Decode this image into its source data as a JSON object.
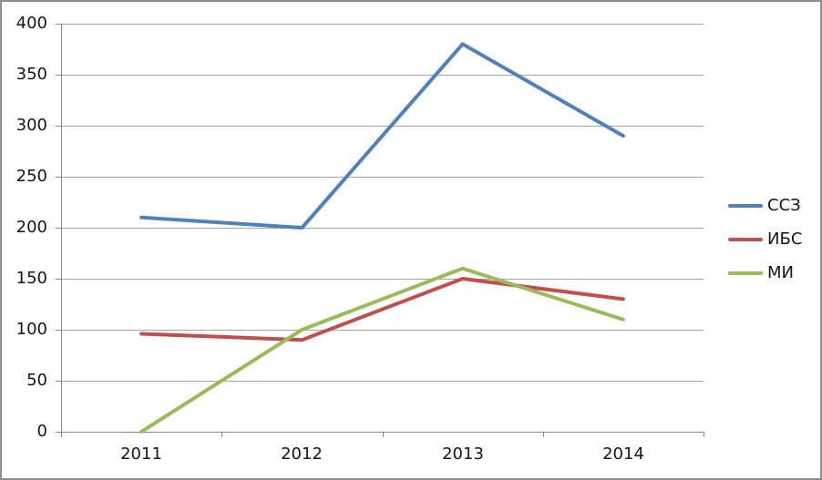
{
  "window": {
    "background": "#ffffff",
    "border_color": "#8f8f8f"
  },
  "chart_data": {
    "type": "line",
    "title": "",
    "xlabel": "",
    "ylabel": "",
    "categories": [
      "2011",
      "2012",
      "2013",
      "2014"
    ],
    "series": [
      {
        "name": "ССЗ",
        "color": "#4F81BD",
        "values": [
          210,
          200,
          380,
          290
        ]
      },
      {
        "name": "ИБС",
        "color": "#C0504D",
        "values": [
          96,
          90,
          150,
          130
        ]
      },
      {
        "name": "МИ",
        "color": "#9BBB59",
        "values": [
          0,
          100,
          160,
          110
        ]
      }
    ],
    "ylim": [
      0,
      400
    ],
    "ytick_step": 50,
    "yticks": [
      400,
      350,
      300,
      250,
      200,
      150,
      100,
      50,
      0
    ],
    "grid": "horizontal-only",
    "gridline_color": "#a6a6a6",
    "axis_color": "#898989",
    "text_color": "#161616",
    "legend_position": "right-middle",
    "line_width": 4
  }
}
